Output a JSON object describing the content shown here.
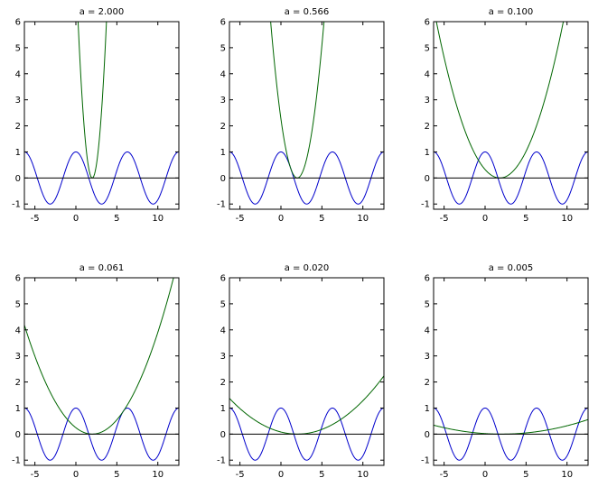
{
  "chart_data": [
    {
      "type": "line",
      "title": "a = 2.000",
      "xlim": [
        -6.283,
        12.566
      ],
      "ylim": [
        -1.2,
        6
      ],
      "xticks": [
        -5,
        0,
        5,
        10
      ],
      "yticks": [
        -1,
        0,
        1,
        2,
        3,
        4,
        5,
        6
      ],
      "series": [
        {
          "function": "cos(x)",
          "color": "#0000cc"
        },
        {
          "function": "a*(x-xmin)^2",
          "a": 2.0,
          "xmin": 2.0,
          "color": "#006600"
        },
        {
          "function": "0",
          "color": "#000000"
        }
      ]
    },
    {
      "type": "line",
      "title": "a = 0.566",
      "xlim": [
        -6.283,
        12.566
      ],
      "ylim": [
        -1.2,
        6
      ],
      "xticks": [
        -5,
        0,
        5,
        10
      ],
      "yticks": [
        -1,
        0,
        1,
        2,
        3,
        4,
        5,
        6
      ],
      "series": [
        {
          "function": "cos(x)",
          "color": "#0000cc"
        },
        {
          "function": "a*(x-xmin)^2",
          "a": 0.566,
          "xmin": 2.0,
          "color": "#006600"
        },
        {
          "function": "0",
          "color": "#000000"
        }
      ]
    },
    {
      "type": "line",
      "title": "a = 0.100",
      "xlim": [
        -6.283,
        12.566
      ],
      "ylim": [
        -1.2,
        6
      ],
      "xticks": [
        -5,
        0,
        5,
        10
      ],
      "yticks": [
        -1,
        0,
        1,
        2,
        3,
        4,
        5,
        6
      ],
      "series": [
        {
          "function": "cos(x)",
          "color": "#0000cc"
        },
        {
          "function": "a*(x-xmin)^2",
          "a": 0.1,
          "xmin": 1.8,
          "color": "#006600"
        },
        {
          "function": "0",
          "color": "#000000"
        }
      ]
    },
    {
      "type": "line",
      "title": "a = 0.061",
      "xlim": [
        -6.283,
        12.566
      ],
      "ylim": [
        -1.2,
        6
      ],
      "xticks": [
        -5,
        0,
        5,
        10
      ],
      "yticks": [
        -1,
        0,
        1,
        2,
        3,
        4,
        5,
        6
      ],
      "series": [
        {
          "function": "cos(x)",
          "color": "#0000cc"
        },
        {
          "function": "a*(x-xmin)^2",
          "a": 0.061,
          "xmin": 2.0,
          "color": "#006600"
        },
        {
          "function": "0",
          "color": "#000000"
        }
      ]
    },
    {
      "type": "line",
      "title": "a = 0.020",
      "xlim": [
        -6.283,
        12.566
      ],
      "ylim": [
        -1.2,
        6
      ],
      "xticks": [
        -5,
        0,
        5,
        10
      ],
      "yticks": [
        -1,
        0,
        1,
        2,
        3,
        4,
        5,
        6
      ],
      "series": [
        {
          "function": "cos(x)",
          "color": "#0000cc"
        },
        {
          "function": "a*(x-xmin)^2",
          "a": 0.02,
          "xmin": 2.0,
          "color": "#006600"
        },
        {
          "function": "0",
          "color": "#000000"
        }
      ]
    },
    {
      "type": "line",
      "title": "a = 0.005",
      "xlim": [
        -6.283,
        12.566
      ],
      "ylim": [
        -1.2,
        6
      ],
      "xticks": [
        -5,
        0,
        5,
        10
      ],
      "yticks": [
        -1,
        0,
        1,
        2,
        3,
        4,
        5,
        6
      ],
      "series": [
        {
          "function": "cos(x)",
          "color": "#0000cc"
        },
        {
          "function": "a*(x-xmin)^2",
          "a": 0.005,
          "xmin": 2.0,
          "color": "#006600"
        },
        {
          "function": "0",
          "color": "#000000"
        }
      ]
    }
  ]
}
